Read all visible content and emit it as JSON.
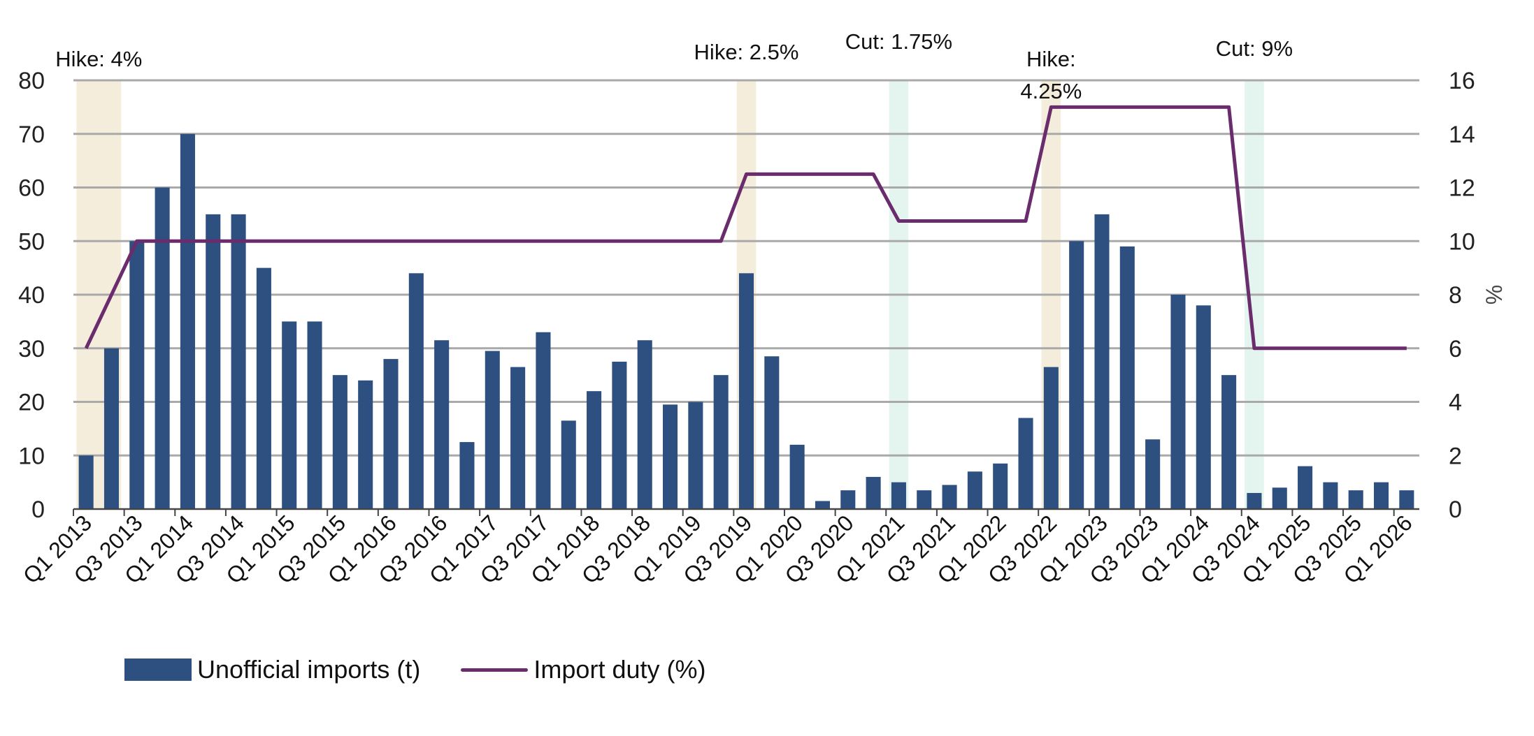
{
  "chart_data": {
    "type": "bar+line",
    "categories": [
      "Q1 2013",
      "Q2 2013",
      "Q3 2013",
      "Q4 2013",
      "Q1 2014",
      "Q2 2014",
      "Q3 2014",
      "Q4 2014",
      "Q1 2015",
      "Q2 2015",
      "Q3 2015",
      "Q4 2015",
      "Q1 2016",
      "Q2 2016",
      "Q3 2016",
      "Q4 2016",
      "Q1 2017",
      "Q2 2017",
      "Q3 2017",
      "Q4 2017",
      "Q1 2018",
      "Q2 2018",
      "Q3 2018",
      "Q4 2018",
      "Q1 2019",
      "Q2 2019",
      "Q3 2019",
      "Q4 2019",
      "Q1 2020",
      "Q2 2020",
      "Q3 2020",
      "Q4 2020",
      "Q1 2021",
      "Q2 2021",
      "Q3 2021",
      "Q4 2021",
      "Q1 2022",
      "Q2 2022",
      "Q3 2022",
      "Q4 2022",
      "Q1 2023",
      "Q2 2023",
      "Q3 2023",
      "Q4 2023",
      "Q1 2024",
      "Q2 2024",
      "Q3 2024",
      "Q4 2024",
      "Q1 2025",
      "Q2 2025",
      "Q3 2025",
      "Q4 2025",
      "Q1 2026"
    ],
    "x_tick_labels": [
      "Q1 2013",
      "Q3 2013",
      "Q1 2014",
      "Q3 2014",
      "Q1 2015",
      "Q3 2015",
      "Q1 2016",
      "Q3 2016",
      "Q1 2017",
      "Q3 2017",
      "Q1 2018",
      "Q3 2018",
      "Q1 2019",
      "Q3 2019",
      "Q1 2020",
      "Q3 2020",
      "Q1 2021",
      "Q3 2021",
      "Q1 2022",
      "Q3 2022",
      "Q1 2023",
      "Q3 2023",
      "Q1 2024",
      "Q3 2024",
      "Q1 2025",
      "Q3 2025",
      "Q1 2026"
    ],
    "series": [
      {
        "name": "Unofficial imports (t)",
        "type": "bar",
        "axis": "left",
        "color": "#2e5080",
        "values": [
          10,
          30,
          50,
          60,
          70,
          55,
          55,
          45,
          35,
          35,
          25,
          24,
          28,
          44,
          31.5,
          12.5,
          29.5,
          26.5,
          33,
          16.5,
          22,
          27.5,
          31.5,
          19.5,
          20,
          25,
          44,
          28.5,
          12,
          1.5,
          3.5,
          6,
          5,
          3.5,
          4.5,
          7,
          8.5,
          17,
          26.5,
          50,
          55,
          49,
          13,
          40,
          38,
          25,
          3,
          4,
          8,
          5,
          3.5,
          5,
          3.5
        ]
      },
      {
        "name": "Import duty (%)",
        "type": "line",
        "axis": "right",
        "color": "#6a2c6c",
        "values": [
          6,
          8,
          10,
          10,
          10,
          10,
          10,
          10,
          10,
          10,
          10,
          10,
          10,
          10,
          10,
          10,
          10,
          10,
          10,
          10,
          10,
          10,
          10,
          10,
          10,
          10,
          12.5,
          12.5,
          12.5,
          12.5,
          12.5,
          12.5,
          10.75,
          10.75,
          10.75,
          10.75,
          10.75,
          10.75,
          15,
          15,
          15,
          15,
          15,
          15,
          15,
          15,
          6,
          6,
          6,
          6,
          6,
          6,
          6
        ]
      }
    ],
    "y_left": {
      "ylim": [
        0,
        80
      ],
      "ticks": [
        "0",
        "10",
        "20",
        "30",
        "40",
        "50",
        "60",
        "70",
        "80"
      ]
    },
    "y_right": {
      "ylim": [
        0,
        16
      ],
      "ticks": [
        "0",
        "2",
        "4",
        "6",
        "8",
        "10",
        "12",
        "14",
        "16"
      ],
      "label": "%"
    },
    "highlights": [
      {
        "category_index": 0,
        "span": 2,
        "kind": "hike",
        "color": "#f4eddc",
        "label": "Hike: 4%"
      },
      {
        "category_index": 26,
        "span": 1,
        "kind": "hike",
        "color": "#f4eddc",
        "label": "Hike: 2.5%"
      },
      {
        "category_index": 32,
        "span": 1,
        "kind": "cut",
        "color": "#e4f4ee",
        "label": "Cut: 1.75%"
      },
      {
        "category_index": 38,
        "span": 1,
        "kind": "hike",
        "color": "#f4eddc",
        "label_lines": [
          "Hike:",
          "4.25%"
        ]
      },
      {
        "category_index": 46,
        "span": 1,
        "kind": "cut",
        "color": "#e4f4ee",
        "label": "Cut: 9%"
      }
    ],
    "grid": true,
    "legend_position": "bottom-left"
  },
  "legend": {
    "bars_label": "Unofficial imports (t)",
    "line_label": "Import duty (%)"
  }
}
